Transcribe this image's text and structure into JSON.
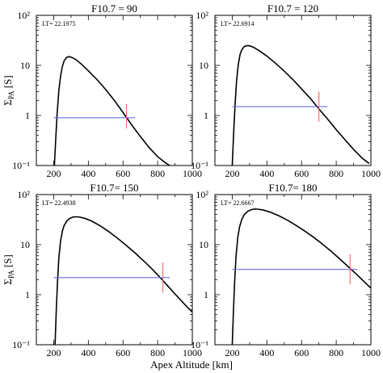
{
  "figure": {
    "ylabel_main": "Σ",
    "ylabel_sub": "PA",
    "ylabel_unit": " [S]",
    "xlabel": "Apex Altitude [km]"
  },
  "chart_data": [
    {
      "type": "line",
      "title": "F10.7 = 90",
      "annotation": "LT= 22.1975",
      "xlabel": "Apex Altitude [km]",
      "ylabel": "Σ_PA [S]",
      "xlim": [
        100,
        1000
      ],
      "ylim": [
        0.1,
        100
      ],
      "yscale": "log",
      "x_ticks": [
        "200",
        "400",
        "600",
        "800",
        "1000"
      ],
      "y_ticks": [
        "10⁻¹",
        "1",
        "10",
        "10²"
      ],
      "series": [
        {
          "x": [
            204,
            212,
            220,
            230,
            240,
            250,
            260,
            275,
            290,
            310,
            330,
            360,
            400,
            450,
            500,
            550,
            600,
            650,
            700,
            750,
            800,
            850,
            880
          ],
          "y": [
            0.1,
            0.35,
            1.1,
            3.2,
            6.2,
            9.5,
            12.3,
            14.5,
            15.0,
            14.2,
            12.9,
            10.6,
            7.8,
            5.2,
            3.3,
            2.0,
            1.15,
            0.65,
            0.38,
            0.23,
            0.15,
            0.11,
            0.095
          ]
        }
      ],
      "peak_mark": {
        "x_range": [
          200,
          670
        ],
        "value": 0.9,
        "center": 620,
        "error_range": [
          0.55,
          1.7
        ]
      }
    },
    {
      "type": "line",
      "title": "F10.7 = 120",
      "annotation": "LT= 22.6914",
      "xlabel": "Apex Altitude [km]",
      "ylabel": "Σ_PA [S]",
      "xlim": [
        100,
        1000
      ],
      "ylim": [
        0.1,
        100
      ],
      "yscale": "log",
      "x_ticks": [
        "200",
        "400",
        "600",
        "800",
        "1000"
      ],
      "y_ticks": [
        "10⁻¹",
        "1",
        "10",
        "10²"
      ],
      "series": [
        {
          "x": [
            200,
            208,
            216,
            225,
            235,
            245,
            255,
            270,
            290,
            310,
            330,
            360,
            400,
            450,
            500,
            550,
            600,
            650,
            700,
            750,
            800,
            850,
            900,
            950,
            990
          ],
          "y": [
            0.1,
            0.45,
            1.6,
            5.0,
            10.5,
            16.5,
            20.5,
            24.0,
            25.0,
            24.0,
            22.3,
            19.2,
            15.3,
            11.0,
            7.7,
            5.2,
            3.4,
            2.2,
            1.35,
            0.85,
            0.52,
            0.33,
            0.21,
            0.14,
            0.11
          ]
        }
      ],
      "peak_mark": {
        "x_range": [
          200,
          750
        ],
        "value": 1.5,
        "center": 700,
        "error_range": [
          0.75,
          3.0
        ]
      }
    },
    {
      "type": "line",
      "title": "F10.7= 150",
      "annotation": "LT= 22.4938",
      "xlabel": "Apex Altitude [km]",
      "ylabel": "Σ_PA [S]",
      "xlim": [
        100,
        1000
      ],
      "ylim": [
        0.1,
        100
      ],
      "yscale": "log",
      "x_ticks": [
        "200",
        "400",
        "600",
        "800",
        "1000"
      ],
      "y_ticks": [
        "10⁻¹",
        "1",
        "10",
        "10²"
      ],
      "series": [
        {
          "x": [
            208,
            215,
            222,
            230,
            240,
            250,
            260,
            275,
            290,
            310,
            330,
            350,
            380,
            420,
            470,
            520,
            570,
            620,
            670,
            720,
            770,
            820,
            870,
            920,
            970,
            1000
          ],
          "y": [
            0.1,
            0.5,
            1.8,
            5.5,
            12.0,
            18.5,
            24.0,
            29.5,
            33.0,
            35.5,
            36.0,
            35.5,
            33.5,
            29.5,
            23.5,
            18.0,
            13.3,
            9.6,
            6.8,
            4.7,
            3.2,
            2.1,
            1.35,
            0.87,
            0.57,
            0.45
          ]
        }
      ],
      "peak_mark": {
        "x_range": [
          200,
          870
        ],
        "value": 2.2,
        "center": 830,
        "error_range": [
          1.1,
          4.4
        ]
      }
    },
    {
      "type": "line",
      "title": "F10.7= 180",
      "annotation": "LT= 22.6667",
      "xlabel": "Apex Altitude [km]",
      "ylabel": "Σ_PA [S]",
      "xlim": [
        100,
        1000
      ],
      "ylim": [
        0.1,
        100
      ],
      "yscale": "log",
      "x_ticks": [
        "200",
        "400",
        "600",
        "800",
        "1000"
      ],
      "y_ticks": [
        "10⁻¹",
        "1",
        "10",
        "10²"
      ],
      "series": [
        {
          "x": [
            200,
            207,
            214,
            222,
            232,
            242,
            255,
            270,
            290,
            310,
            330,
            350,
            380,
            420,
            470,
            520,
            570,
            620,
            670,
            720,
            770,
            820,
            870,
            920,
            970,
            1000
          ],
          "y": [
            0.1,
            0.5,
            1.9,
            6.0,
            14.0,
            22.5,
            32.0,
            40.0,
            46.5,
            50.0,
            51.5,
            51.0,
            49.0,
            44.5,
            37.5,
            30.5,
            24.0,
            18.5,
            14.0,
            10.3,
            7.4,
            5.2,
            3.6,
            2.5,
            1.7,
            1.35
          ]
        }
      ],
      "peak_mark": {
        "x_range": [
          200,
          920
        ],
        "value": 3.2,
        "center": 880,
        "error_range": [
          1.6,
          6.5
        ]
      }
    }
  ]
}
